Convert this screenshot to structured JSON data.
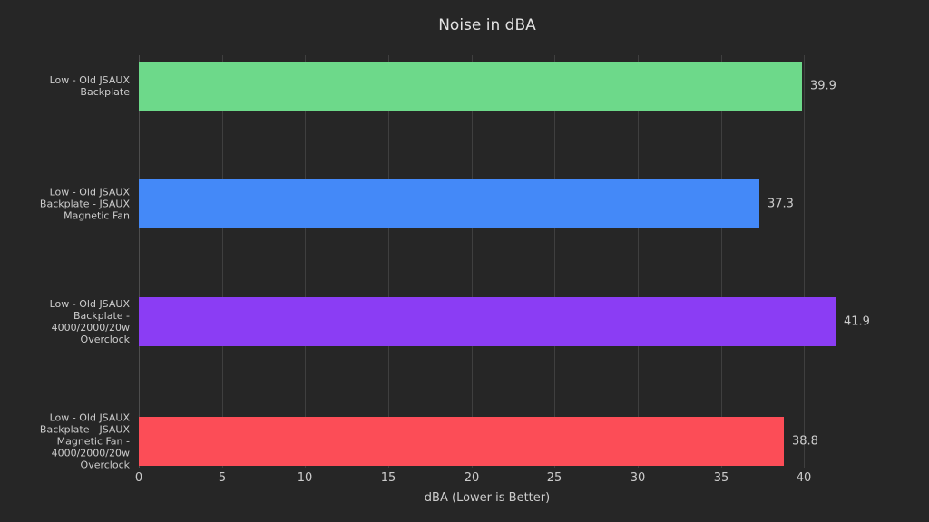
{
  "title": "Noise in dBA",
  "chart_data": {
    "type": "bar",
    "orientation": "horizontal",
    "title": "Noise in dBA",
    "xlabel": "dBA (Lower is Better)",
    "ylabel": "",
    "categories": [
      "Low - Old JSAUX Backplate",
      "Low - Old JSAUX Backplate - JSAUX Magnetic Fan",
      "Low - Old JSAUX Backplate - 4000/2000/20w Overclock",
      "Low - Old JSAUX Backplate - JSAUX Magnetic Fan - 4000/2000/20w Overclock"
    ],
    "category_lines": [
      [
        "Low - Old JSAUX",
        "Backplate"
      ],
      [
        "Low - Old JSAUX",
        "Backplate - JSAUX",
        "Magnetic Fan"
      ],
      [
        "Low - Old JSAUX",
        "Backplate -",
        "4000/2000/20w Overclock"
      ],
      [
        "Low - Old JSAUX",
        "Backplate - JSAUX",
        "Magnetic Fan -",
        "4000/2000/20w Overclock"
      ]
    ],
    "values": [
      39.9,
      37.3,
      41.9,
      38.8
    ],
    "value_labels": [
      "39.9",
      "37.3",
      "41.9",
      "38.8"
    ],
    "bar_colors": [
      "#6dd98a",
      "#4489f8",
      "#8b3df4",
      "#fc4d57"
    ],
    "xticks": [
      0,
      5,
      10,
      15,
      20,
      25,
      30,
      35,
      40
    ],
    "xlim": [
      0,
      41.9
    ],
    "grid": true,
    "legend": null
  },
  "colors": {
    "background": "#262626",
    "gridline": "#3f3f3f",
    "zero_line": "#4d4d4d",
    "text": "#cccccc",
    "title_text": "#e3e3e3"
  }
}
